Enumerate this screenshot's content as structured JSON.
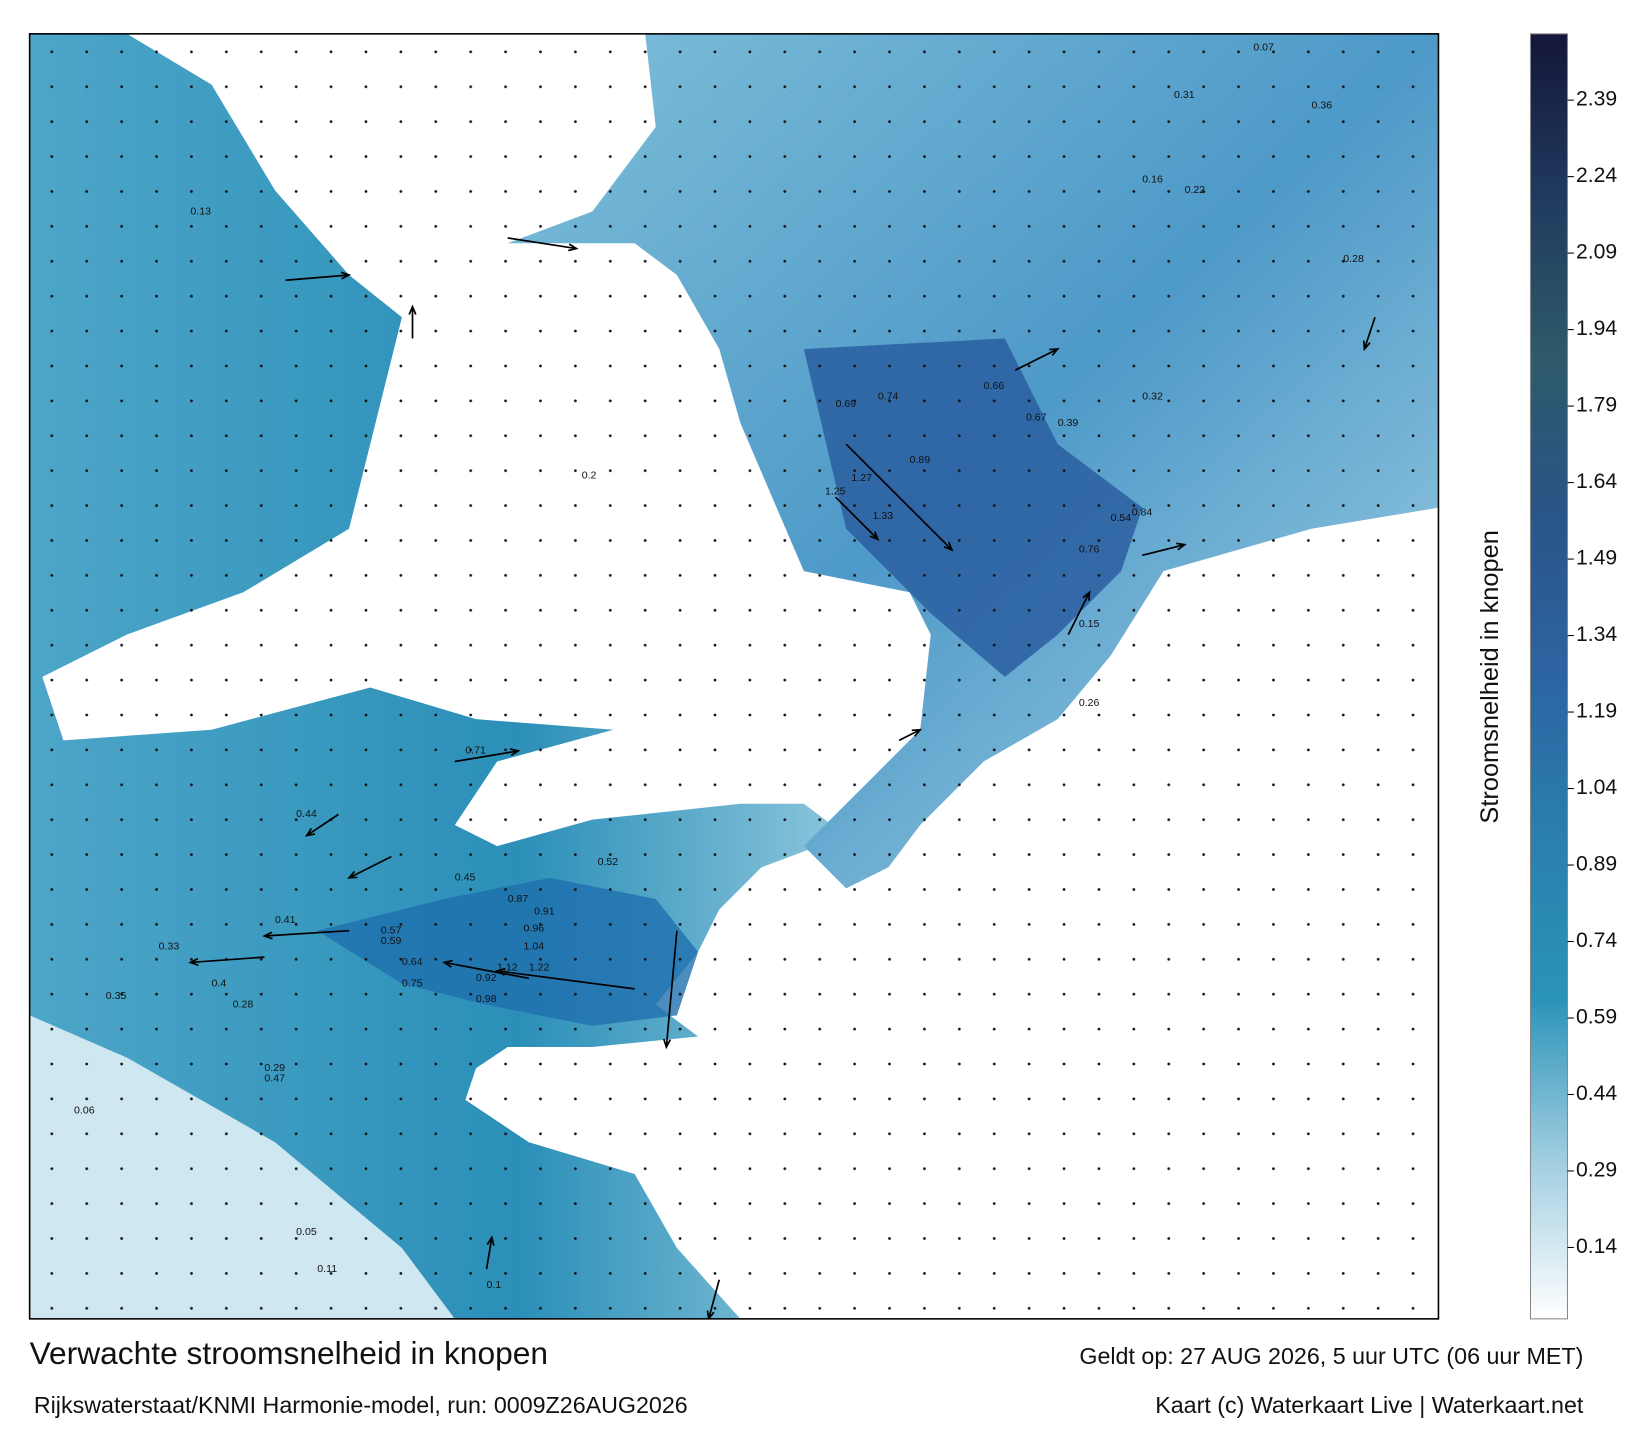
{
  "header": {
    "title": "Verwachte stroomsnelheid in knopen",
    "subtitle": "Rijkswaterstaat/KNMI Harmonie-model, run: 0009Z26AUG2026",
    "valid": "Geldt op: 27 AUG 2026, 5 uur UTC (06 uur MET)",
    "credit": "Kaart (c) Waterkaart Live | Waterkaart.net"
  },
  "colorbar": {
    "label": "Stroomsnelheid in knopen",
    "lim": [
      0,
      2.52
    ],
    "ticks": [
      0.14,
      0.29,
      0.44,
      0.59,
      0.74,
      0.89,
      1.04,
      1.19,
      1.34,
      1.49,
      1.64,
      1.79,
      1.94,
      2.09,
      2.24,
      2.39
    ],
    "colors": [
      "#ffffff",
      "#9fcde0",
      "#2a93b8",
      "#2a7fae",
      "#2c64a2",
      "#2a5588",
      "#2e5a6a",
      "#1f3a5e",
      "#14163a"
    ]
  },
  "map_labels": [
    1.12,
    1.22,
    0.92,
    0.98,
    0.87,
    0.91,
    0.96,
    1.04,
    0.75,
    0.64,
    0.59,
    0.57,
    0.41,
    0.33,
    0.35,
    0.4,
    0.44,
    0.47,
    1.25,
    1.27,
    1.33,
    0.89,
    0.74,
    0.66,
    0.54,
    0.84,
    0.76,
    0.67,
    0.39,
    0.32,
    0.28,
    0.26,
    0.16,
    0.15,
    0.07,
    0.06,
    0.05,
    0.22,
    0.31,
    0.36,
    0.52,
    0.45,
    0.71,
    0.69,
    0.28,
    0.29,
    0.2,
    0.13,
    0.11,
    0.1
  ]
}
